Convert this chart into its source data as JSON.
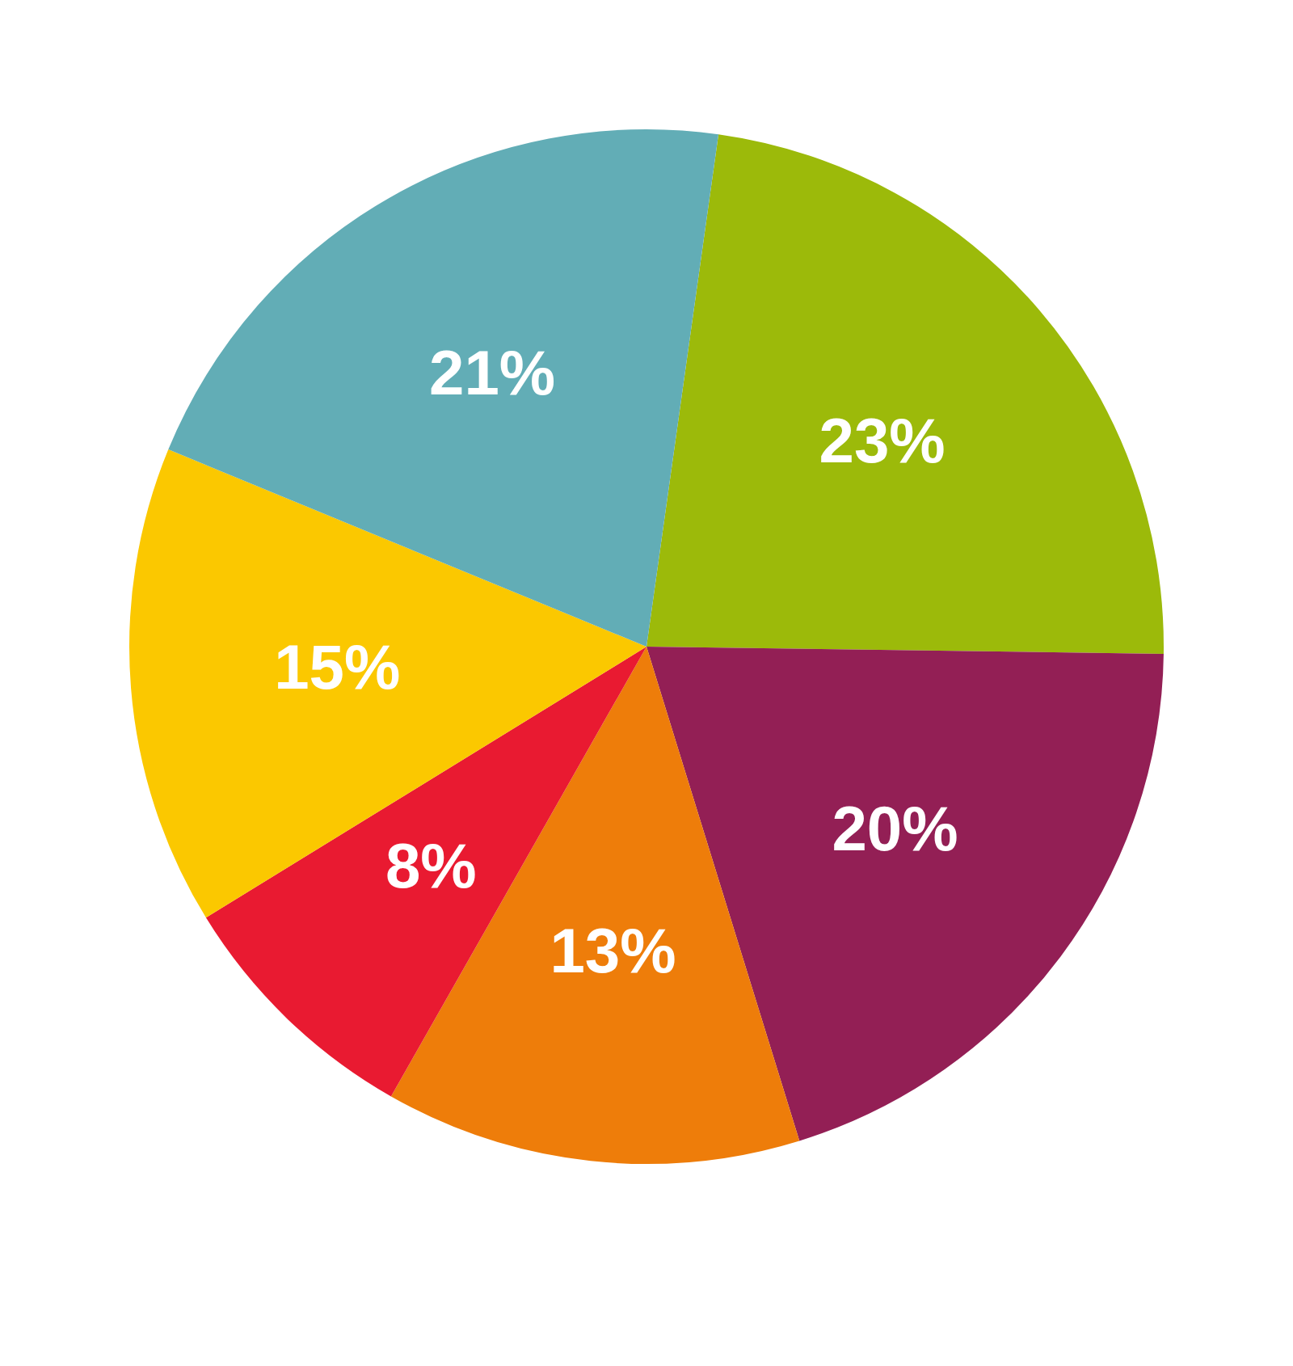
{
  "chart_data": {
    "type": "pie",
    "categories": [
      null,
      null,
      null,
      null,
      null,
      null
    ],
    "values": [
      23,
      20,
      13,
      8,
      15,
      21
    ],
    "colors": [
      "#9cba0a",
      "#931f55",
      "#ee7d0a",
      "#e91a31",
      "#fbc800",
      "#62adb6"
    ],
    "value_labels": [
      "23%",
      "20%",
      "13%",
      "8%",
      "15%",
      "21%"
    ],
    "legend": false
  }
}
